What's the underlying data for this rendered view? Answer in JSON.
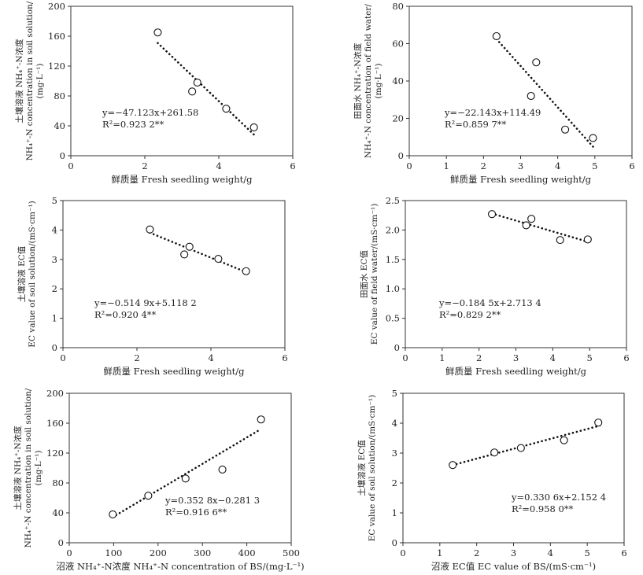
{
  "chart_data": [
    {
      "type": "scatter",
      "xlabel": "鲜质量 Fresh seedling weight/g",
      "ylabel": [
        "土壤溶液 NH₄⁺-N浓度",
        "NH₄⁺-N concentration in soil solution/",
        "(mg·L⁻¹)"
      ],
      "xlim": [
        0,
        6
      ],
      "ylim": [
        0,
        200
      ],
      "xticks": [
        "0",
        "2",
        "4",
        "6"
      ],
      "yticks": [
        "0",
        "40",
        "80",
        "120",
        "160",
        "200"
      ],
      "points": [
        [
          2.35,
          165
        ],
        [
          3.28,
          86
        ],
        [
          3.42,
          98
        ],
        [
          4.2,
          63
        ],
        [
          4.95,
          38
        ]
      ],
      "fit": {
        "slope": -47.123,
        "intercept": 261.58,
        "x_range": [
          2.35,
          4.95
        ]
      },
      "equation": "y=−47.123x+261.58",
      "r2": "R²=0.923 2**"
    },
    {
      "type": "scatter",
      "xlabel": "鲜质量 Fresh seedling weight/g",
      "ylabel": [
        "田面水 NH₄⁺-N浓度",
        "NH₄⁺-N concentration of field water/",
        "(mg·L⁻¹)"
      ],
      "xlim": [
        0,
        6
      ],
      "ylim": [
        0,
        80
      ],
      "xticks": [
        "0",
        "1",
        "2",
        "3",
        "4",
        "5",
        "6"
      ],
      "yticks": [
        "0",
        "20",
        "40",
        "60",
        "80"
      ],
      "points": [
        [
          2.35,
          64
        ],
        [
          3.28,
          32
        ],
        [
          3.42,
          50
        ],
        [
          4.2,
          14
        ],
        [
          4.95,
          9.5
        ]
      ],
      "fit": {
        "slope": -22.143,
        "intercept": 114.49,
        "x_range": [
          2.35,
          4.95
        ]
      },
      "equation": "y=−22.143x+114.49",
      "r2": "R²=0.859 7**"
    },
    {
      "type": "scatter",
      "xlabel": "鲜质量 Fresh seedling weight/g",
      "ylabel": [
        "土壤溶液 EC值",
        "EC value of soil solution/(mS·cm⁻¹)"
      ],
      "xlim": [
        0,
        6
      ],
      "ylim": [
        0,
        5
      ],
      "xticks": [
        "0",
        "2",
        "4",
        "6"
      ],
      "yticks": [
        "0",
        "1",
        "2",
        "3",
        "4",
        "5"
      ],
      "points": [
        [
          2.35,
          4.02
        ],
        [
          3.28,
          3.17
        ],
        [
          3.42,
          3.43
        ],
        [
          4.2,
          3.02
        ],
        [
          4.95,
          2.6
        ]
      ],
      "fit": {
        "slope": -0.5149,
        "intercept": 5.1182,
        "x_range": [
          2.35,
          4.95
        ]
      },
      "equation": "y=−0.514 9x+5.118 2",
      "r2": "R²=0.920 4**"
    },
    {
      "type": "scatter",
      "xlabel": "鲜质量 Fresh seedling weight/g",
      "ylabel": [
        "田面水 EC值",
        "EC value of field water/(mS·cm⁻¹)"
      ],
      "xlim": [
        0,
        6
      ],
      "ylim": [
        0,
        2.5
      ],
      "xticks": [
        "0",
        "1",
        "2",
        "3",
        "4",
        "5",
        "6"
      ],
      "yticks": [
        "0",
        "0.5",
        "1.0",
        "1.5",
        "2.0",
        "2.5"
      ],
      "points": [
        [
          2.35,
          2.27
        ],
        [
          3.28,
          2.08
        ],
        [
          3.42,
          2.19
        ],
        [
          4.2,
          1.83
        ],
        [
          4.95,
          1.84
        ]
      ],
      "fit": {
        "slope": -0.1845,
        "intercept": 2.7134,
        "x_range": [
          2.35,
          4.95
        ]
      },
      "equation": "y=−0.184 5x+2.713 4",
      "r2": "R²=0.829 2**"
    },
    {
      "type": "scatter",
      "xlabel": "沼液 NH₄⁺-N浓度 NH₄⁺-N concentration of BS/(mg·L⁻¹)",
      "ylabel": [
        "土壤溶液 NH₄⁺-N浓度",
        "NH₄⁺-N concentration in soil solution/",
        "(mg·L⁻¹)"
      ],
      "xlim": [
        0,
        500
      ],
      "ylim": [
        0,
        200
      ],
      "xticks": [
        "0",
        "100",
        "200",
        "300",
        "400",
        "500"
      ],
      "yticks": [
        "0",
        "40",
        "80",
        "120",
        "160",
        "200"
      ],
      "points": [
        [
          98,
          38
        ],
        [
          178,
          63
        ],
        [
          262,
          86
        ],
        [
          345,
          98
        ],
        [
          432,
          165
        ]
      ],
      "fit": {
        "slope": 0.3528,
        "intercept": -0.2813,
        "x_range": [
          98,
          432
        ]
      },
      "equation": "y=0.352 8x−0.281 3",
      "r2": "R²=0.916 6**"
    },
    {
      "type": "scatter",
      "xlabel": "沼液 EC值 EC value of BS/(mS·cm⁻¹)",
      "ylabel": [
        "土壤溶液 EC值",
        "EC value of soil solution/(mS·cm⁻¹)"
      ],
      "xlim": [
        0,
        6
      ],
      "ylim": [
        0,
        5
      ],
      "xticks": [
        "0",
        "1",
        "2",
        "3",
        "4",
        "5",
        "6"
      ],
      "yticks": [
        "0",
        "1",
        "2",
        "3",
        "4",
        "5"
      ],
      "points": [
        [
          1.35,
          2.6
        ],
        [
          2.48,
          3.02
        ],
        [
          3.2,
          3.17
        ],
        [
          4.37,
          3.43
        ],
        [
          5.3,
          4.02
        ]
      ],
      "fit": {
        "slope": 0.3306,
        "intercept": 2.1524,
        "x_range": [
          1.35,
          5.3
        ]
      },
      "equation": "y=0.330 6x+2.152 4",
      "r2": "R²=0.958 0**"
    }
  ]
}
